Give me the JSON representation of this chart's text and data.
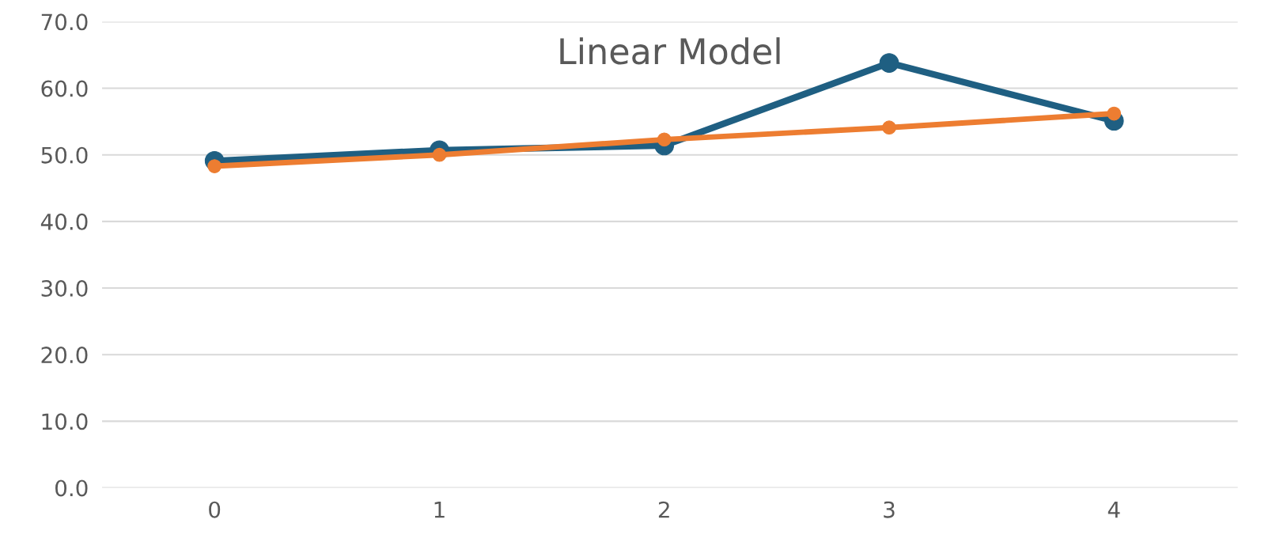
{
  "chart_data": {
    "type": "line",
    "title": "Linear Model",
    "categories": [
      "0",
      "1",
      "2",
      "3",
      "4"
    ],
    "series": [
      {
        "color": "#1f5f82",
        "values": [
          49.1,
          50.7,
          51.4,
          63.8,
          55.1
        ]
      },
      {
        "color": "#ed7d31",
        "values": [
          48.3,
          50.0,
          52.3,
          54.1,
          56.2
        ]
      }
    ],
    "ylim": [
      0,
      70
    ],
    "yticks": [
      {
        "value": 0,
        "label": "0.0"
      },
      {
        "value": 10,
        "label": "10.0"
      },
      {
        "value": 20,
        "label": "20.0"
      },
      {
        "value": 30,
        "label": "30.0"
      },
      {
        "value": 40,
        "label": "40.0"
      },
      {
        "value": 50,
        "label": "50.0"
      },
      {
        "value": 60,
        "label": "60.0"
      },
      {
        "value": 70,
        "label": "70.0"
      }
    ],
    "grid": "y",
    "marker": "circle",
    "line_style": "solid",
    "legend": false
  }
}
